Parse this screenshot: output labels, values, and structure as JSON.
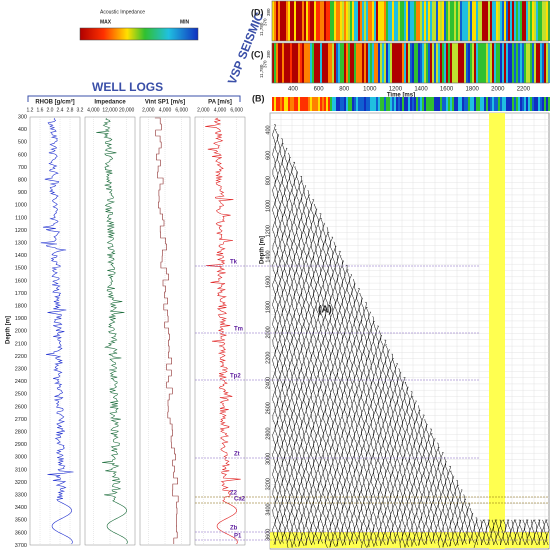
{
  "colorbar": {
    "title": "Acoustic Impedance",
    "max": "MAX",
    "min": "MIN"
  },
  "seismic": {
    "title": "VSP SEISMIC",
    "panels": [
      {
        "label": "(D)",
        "ticks": [
          "11,780",
          "370",
          "380"
        ]
      },
      {
        "label": "(C)",
        "ticks": [
          "11,780",
          "370",
          "380"
        ]
      }
    ],
    "strip_label": "(B)",
    "time_axis": {
      "title": "Time [ms]",
      "ticks": [
        "400",
        "600",
        "800",
        "1000",
        "1200",
        "1400",
        "1600",
        "1800",
        "2000",
        "2200"
      ]
    }
  },
  "well_logs": {
    "title": "WELL LOGS",
    "depth_title": "Depth [m]",
    "depth_ticks": [
      "300",
      "400",
      "500",
      "600",
      "700",
      "800",
      "900",
      "1000",
      "1100",
      "1200",
      "1300",
      "1400",
      "1500",
      "1600",
      "1700",
      "1800",
      "1900",
      "2000",
      "2100",
      "2200",
      "2300",
      "2400",
      "2500",
      "2600",
      "2700",
      "2800",
      "2900",
      "3000",
      "3100",
      "3200",
      "3300",
      "3400",
      "3500",
      "3600",
      "3700"
    ],
    "tracks": [
      {
        "title": "RHOB [g/cm³]",
        "ticks": [
          "1.2",
          "1.6",
          "2.0",
          "2.4",
          "2.8",
          "3.2"
        ]
      },
      {
        "title": "Impedance",
        "ticks": [
          "4,000",
          "12,000",
          "20,000"
        ]
      },
      {
        "title": "Vint SP1 [m/s]",
        "ticks": [
          "2,000",
          "4,000",
          "6,000"
        ]
      },
      {
        "title": "PA [m/s]",
        "ticks": [
          "2,000",
          "4,000",
          "6,000"
        ]
      }
    ]
  },
  "horizons": [
    {
      "label": "Tk"
    },
    {
      "label": "Tm"
    },
    {
      "label": "Tp2"
    },
    {
      "label": "Zt"
    },
    {
      "label": "Z2"
    },
    {
      "label": "Ca2"
    },
    {
      "label": "Zb"
    },
    {
      "label": "P1"
    }
  ],
  "vsp": {
    "label": "(A)",
    "depth_title": "Depth [m]",
    "depth_ticks": [
      "400",
      "600",
      "800",
      "1000",
      "1200",
      "1400",
      "1600",
      "1800",
      "2000",
      "2200",
      "2400",
      "2600",
      "2800",
      "3000",
      "3200",
      "3400",
      "3600"
    ]
  }
}
